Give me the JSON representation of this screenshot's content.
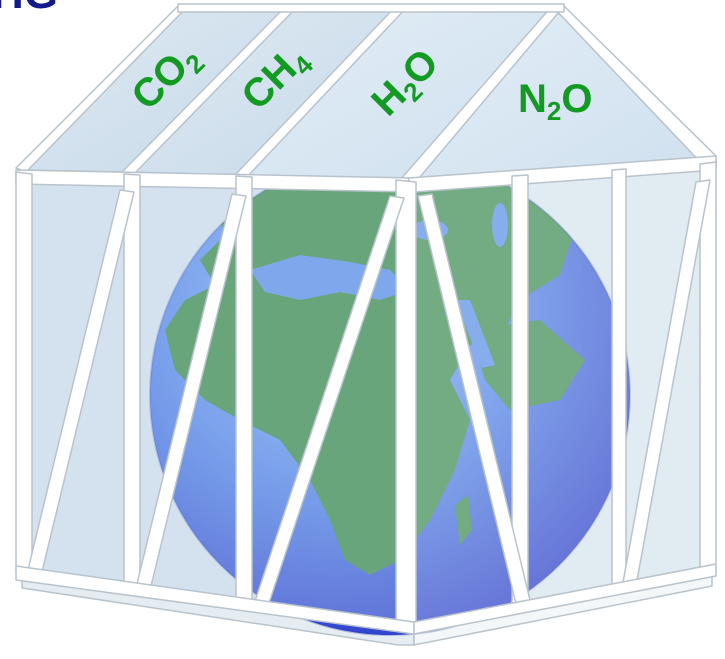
{
  "corner_text": "HG",
  "gases": [
    {
      "base": "CO",
      "sub": "2",
      "after": ""
    },
    {
      "base": "CH",
      "sub": "4",
      "after": ""
    },
    {
      "base": "H",
      "sub": "2",
      "after": "O"
    },
    {
      "base": "N",
      "sub": "2",
      "after": "O"
    }
  ],
  "colors": {
    "gas_label": "#129a22",
    "corner_text": "#131a8a",
    "ocean_light": "#86b8ff",
    "ocean_dark": "#2f3fd2",
    "land": "#3f8c4d",
    "glass": "#c9dcea",
    "frame": "#ffffff"
  }
}
